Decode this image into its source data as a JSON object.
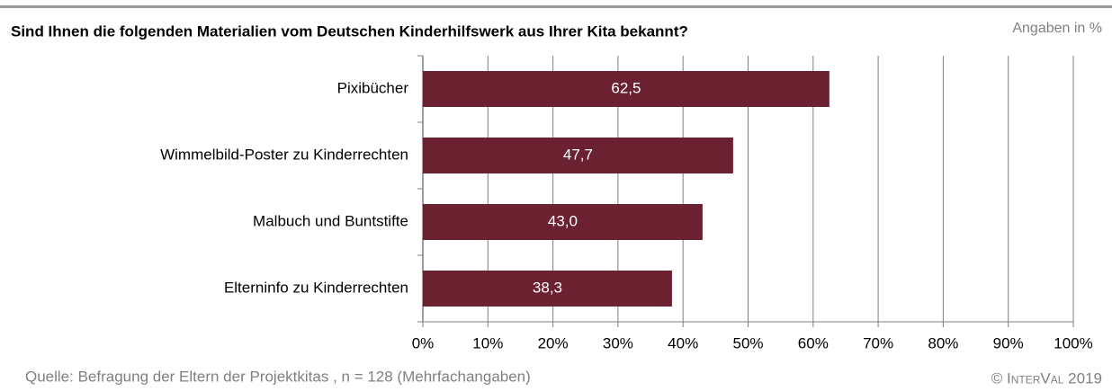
{
  "chart_data": {
    "type": "bar",
    "orientation": "horizontal",
    "title": "Sind Ihnen die folgenden Materialien vom Deutschen Kinderhilfswerk aus Ihrer Kita bekannt?",
    "subtitle": "Angaben in %",
    "categories": [
      "Pixibücher",
      "Wimmelbild-Poster zu Kinderrechten",
      "Malbuch und Buntstifte",
      "Elterninfo zu Kinderrechten"
    ],
    "values": [
      62.5,
      47.7,
      43.0,
      38.3
    ],
    "value_labels": [
      "62,5",
      "47,7",
      "43,0",
      "38,3"
    ],
    "color": "#6b2130",
    "xlim": [
      0,
      100
    ],
    "xticks": [
      {
        "value": 0,
        "label": "0%"
      },
      {
        "value": 10,
        "label": "10%"
      },
      {
        "value": 20,
        "label": "20%"
      },
      {
        "value": 30,
        "label": "30%"
      },
      {
        "value": 40,
        "label": "40%"
      },
      {
        "value": 50,
        "label": "50%"
      },
      {
        "value": 60,
        "label": "60%"
      },
      {
        "value": 70,
        "label": "70%"
      },
      {
        "value": 80,
        "label": "80%"
      },
      {
        "value": 90,
        "label": "90%"
      },
      {
        "value": 100,
        "label": "100%"
      }
    ],
    "grid": true,
    "source": "Quelle: Befragung der Eltern der Projektkitas , n = 128 (Mehrfachangaben)",
    "copyright": "© InterVal 2019"
  }
}
